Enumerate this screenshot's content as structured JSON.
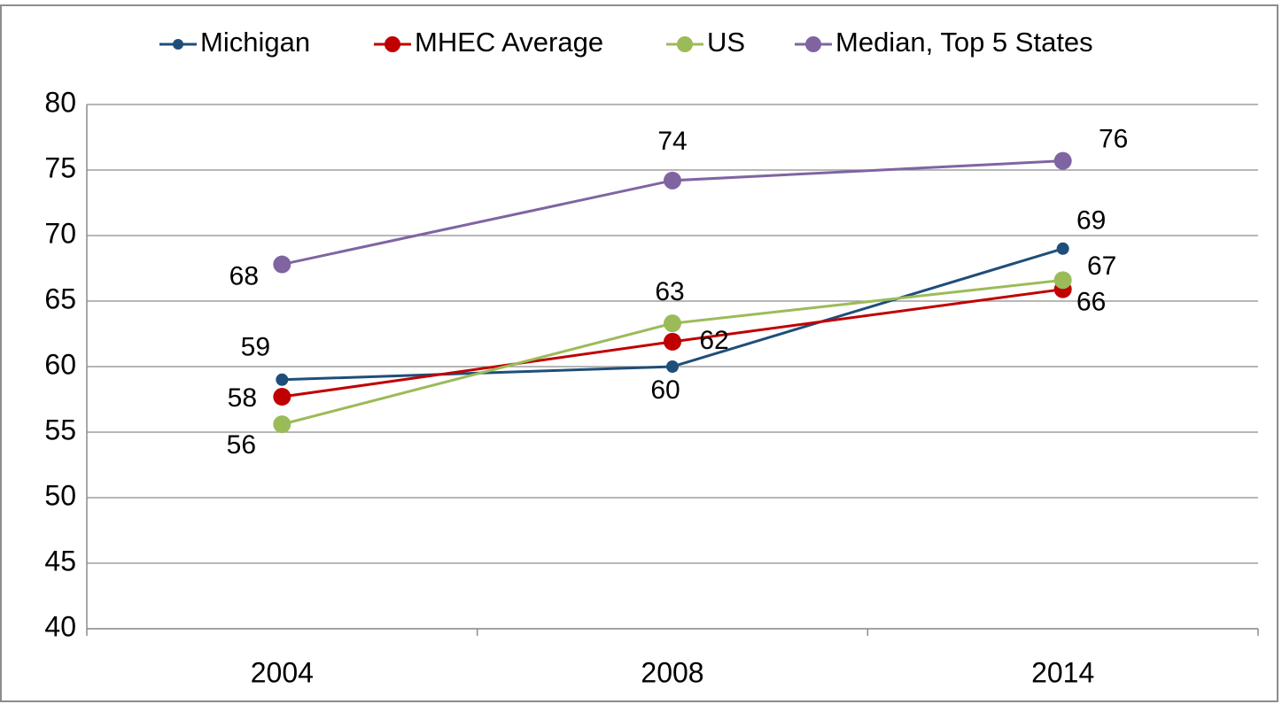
{
  "chart_data": {
    "type": "line",
    "categories": [
      "2004",
      "2008",
      "2014"
    ],
    "series": [
      {
        "name": "Michigan",
        "color": "#1f4e79",
        "values": [
          59,
          60,
          69
        ],
        "value_labels": [
          "59",
          "60",
          "69"
        ]
      },
      {
        "name": "MHEC Average",
        "color": "#c00000",
        "values": [
          57.7,
          61.9,
          65.9
        ],
        "value_labels": [
          "58",
          "62",
          "66"
        ]
      },
      {
        "name": "US",
        "color": "#9bbb59",
        "values": [
          55.6,
          63.3,
          66.6
        ],
        "value_labels": [
          "56",
          "63",
          "67"
        ]
      },
      {
        "name": "Median, Top 5 States",
        "color": "#8064a2",
        "values": [
          67.8,
          74.2,
          75.7
        ],
        "value_labels": [
          "68",
          "74",
          "76"
        ]
      }
    ],
    "ylim": [
      40,
      80
    ],
    "yticks": [
      40,
      45,
      50,
      55,
      60,
      65,
      70,
      75,
      80
    ],
    "grid": true,
    "legend": "top"
  }
}
